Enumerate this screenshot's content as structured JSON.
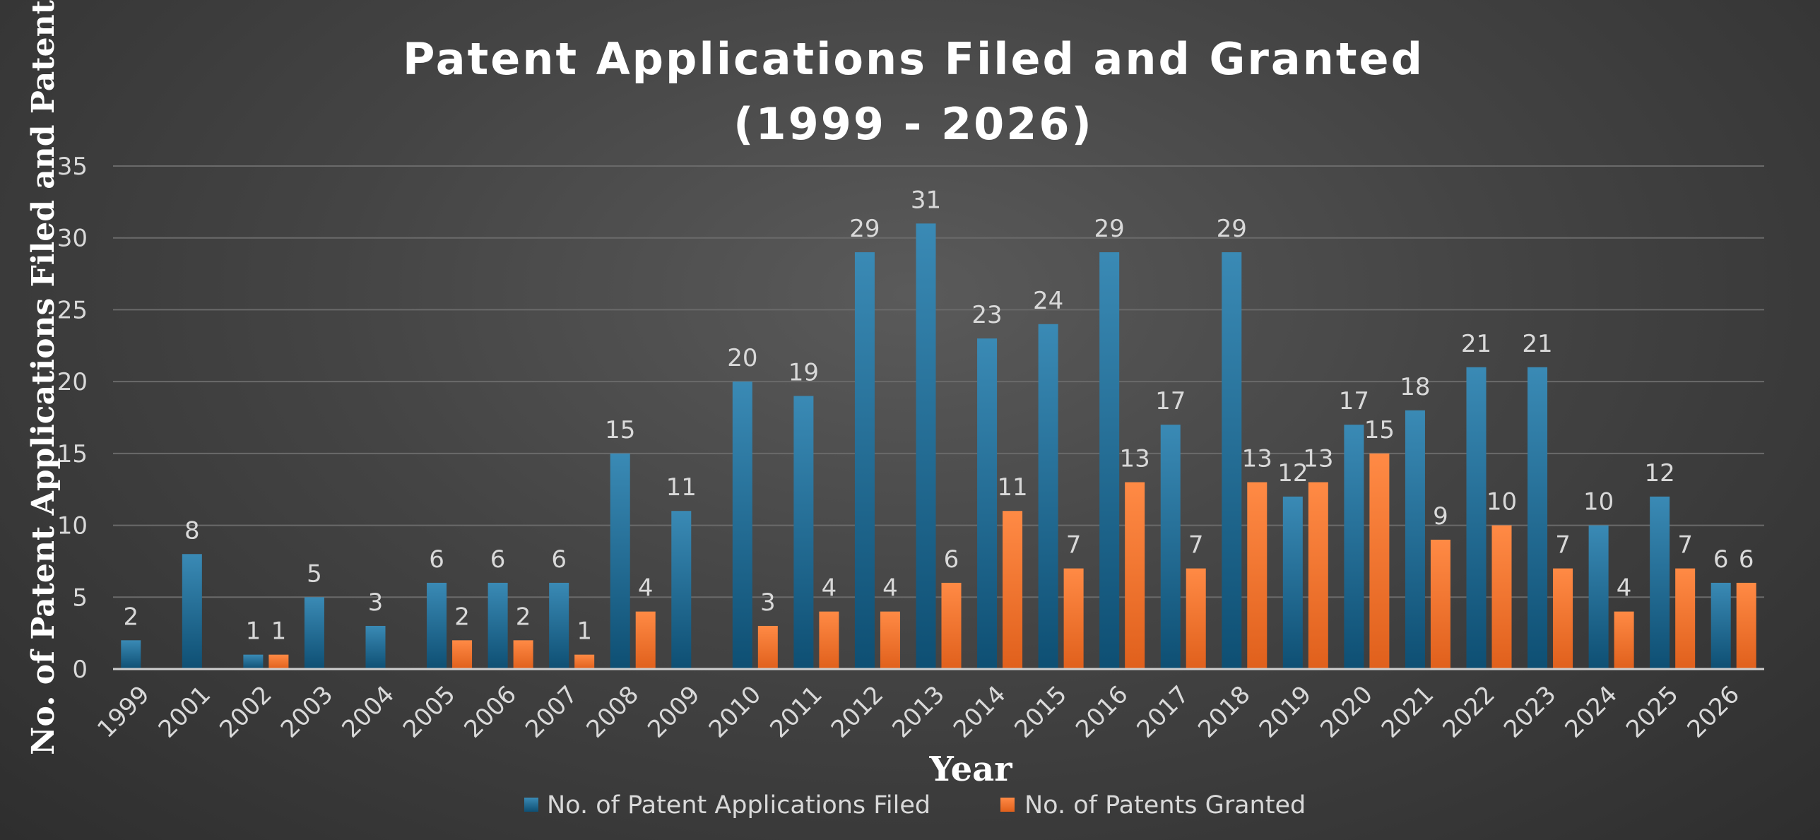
{
  "colors": {
    "filed": "#1b6a94",
    "granted": "#f0732a",
    "grid": "#6a6a6a",
    "text": "#d9d9d9"
  },
  "chart_data": {
    "type": "bar",
    "title_line1": "Patent Applications Filed and Granted",
    "title_line2": "(1999 - 2026)",
    "xlabel": "Year",
    "ylabel": "No. of Patent Applications Filed and Patents",
    "ylim": [
      0,
      35
    ],
    "yticks": [
      0,
      5,
      10,
      15,
      20,
      25,
      30,
      35
    ],
    "grid": true,
    "legend_position": "bottom",
    "categories": [
      "1999",
      "2001",
      "2002",
      "2003",
      "2004",
      "2005",
      "2006",
      "2007",
      "2008",
      "2009",
      "2010",
      "2011",
      "2012",
      "2013",
      "2014",
      "2015",
      "2016",
      "2017",
      "2018",
      "2019",
      "2020",
      "2021",
      "2022",
      "2023",
      "2024",
      "2025",
      "2026"
    ],
    "series": [
      {
        "name": "No. of Patent Applications Filed",
        "values": [
          2,
          8,
          1,
          5,
          3,
          6,
          6,
          6,
          15,
          11,
          20,
          19,
          29,
          31,
          23,
          24,
          29,
          17,
          29,
          12,
          17,
          18,
          21,
          21,
          10,
          12,
          6
        ]
      },
      {
        "name": "No. of Patents Granted",
        "values": [
          null,
          null,
          1,
          null,
          null,
          2,
          2,
          1,
          4,
          null,
          3,
          4,
          4,
          6,
          11,
          7,
          13,
          7,
          13,
          13,
          15,
          9,
          10,
          7,
          4,
          7,
          6
        ]
      }
    ]
  }
}
